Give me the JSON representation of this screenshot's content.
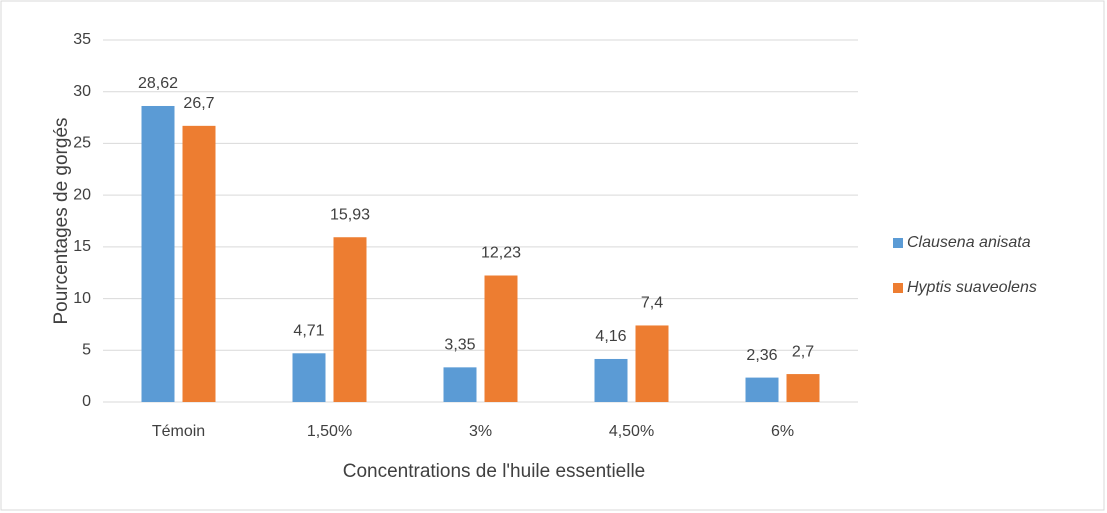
{
  "chart_data": {
    "type": "bar",
    "xlabel": "Concentrations de l'huile essentielle",
    "ylabel": "Pourcentages de gorgés",
    "categories": [
      "Témoin",
      "1,50%",
      "3%",
      "4,50%",
      "6%"
    ],
    "series": [
      {
        "name": "Clausena anisata",
        "color": "#5b9bd5",
        "values": [
          28.62,
          4.71,
          3.35,
          4.16,
          2.36
        ],
        "value_labels": [
          "28,62",
          "4,71",
          "3,35",
          "4,16",
          "2,36"
        ]
      },
      {
        "name": "Hyptis suaveolens",
        "color": "#ed7d31",
        "values": [
          26.7,
          15.93,
          12.23,
          7.4,
          2.7
        ],
        "value_labels": [
          "26,7",
          "15,93",
          "12,23",
          "7,4",
          "2,7"
        ]
      }
    ],
    "ylim": [
      0,
      35
    ],
    "yticks": [
      0,
      5,
      10,
      15,
      20,
      25,
      30,
      35
    ],
    "grid": true,
    "legend": "right"
  }
}
